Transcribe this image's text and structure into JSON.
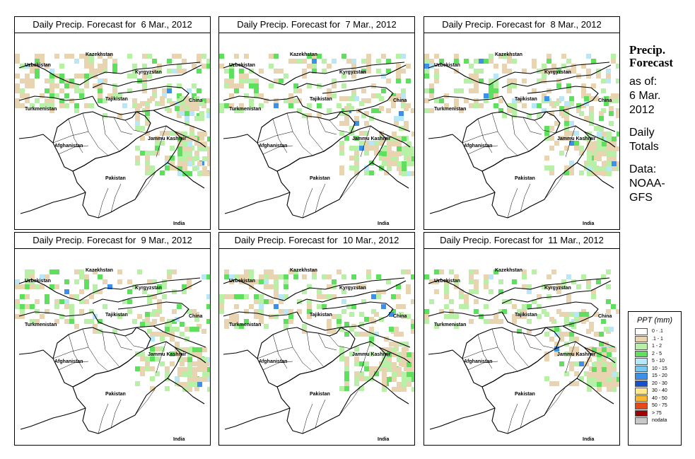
{
  "panels": [
    {
      "title": "Daily Precip. Forecast for  6 Mar., 2012"
    },
    {
      "title": "Daily Precip. Forecast for  7 Mar., 2012"
    },
    {
      "title": "Daily Precip. Forecast for  8 Mar., 2012"
    },
    {
      "title": "Daily Precip. Forecast for  9 Mar., 2012"
    },
    {
      "title": "Daily Precip. Forecast for  10 Mar., 2012"
    },
    {
      "title": "Daily Precip. Forecast for  11 Mar., 2012"
    }
  ],
  "map_labels": {
    "kazakhstan": "Kazekhstan",
    "uzbekistan": "Uzbekistan",
    "kyrgyzstan": "Kyrgyzstan",
    "turkmenistan": "Turkmenistan",
    "tajikistan": "Tajikistan",
    "china": "China",
    "jammu_kashmir": "Jammu Kashmir",
    "afghanistan": "Afghanistan",
    "pakistan": "Pakistan",
    "india": "India"
  },
  "sidebar": {
    "title_line1": "Precip.",
    "title_line2": "Forecast",
    "asof": "as of:",
    "date_line1": "6 Mar.",
    "date_line2": "2012",
    "daily": "Daily",
    "totals": "Totals",
    "data_label": "Data:",
    "source1": "NOAA-",
    "source2": "GFS"
  },
  "legend": {
    "title": "PPT (mm)",
    "entries": [
      {
        "label": "0 - .1",
        "color": "#ffffff"
      },
      {
        "label": ".1 - 1",
        "color": "#e8d4b0"
      },
      {
        "label": "1 - 2",
        "color": "#b8f0a8"
      },
      {
        "label": "2 - 5",
        "color": "#5ee05e"
      },
      {
        "label": "5 - 10",
        "color": "#b8e8f8"
      },
      {
        "label": "10 - 15",
        "color": "#78c8f0"
      },
      {
        "label": "15 - 20",
        "color": "#3c90e8"
      },
      {
        "label": "20 - 30",
        "color": "#1450d0"
      },
      {
        "label": "30 - 40",
        "color": "#ffe890"
      },
      {
        "label": "40 - 50",
        "color": "#f8b830"
      },
      {
        "label": "50 - 75",
        "color": "#e84818"
      },
      {
        "label": "> 75",
        "color": "#a00000"
      },
      {
        "label": "nodata",
        "color": "#c8c8c8"
      }
    ]
  }
}
